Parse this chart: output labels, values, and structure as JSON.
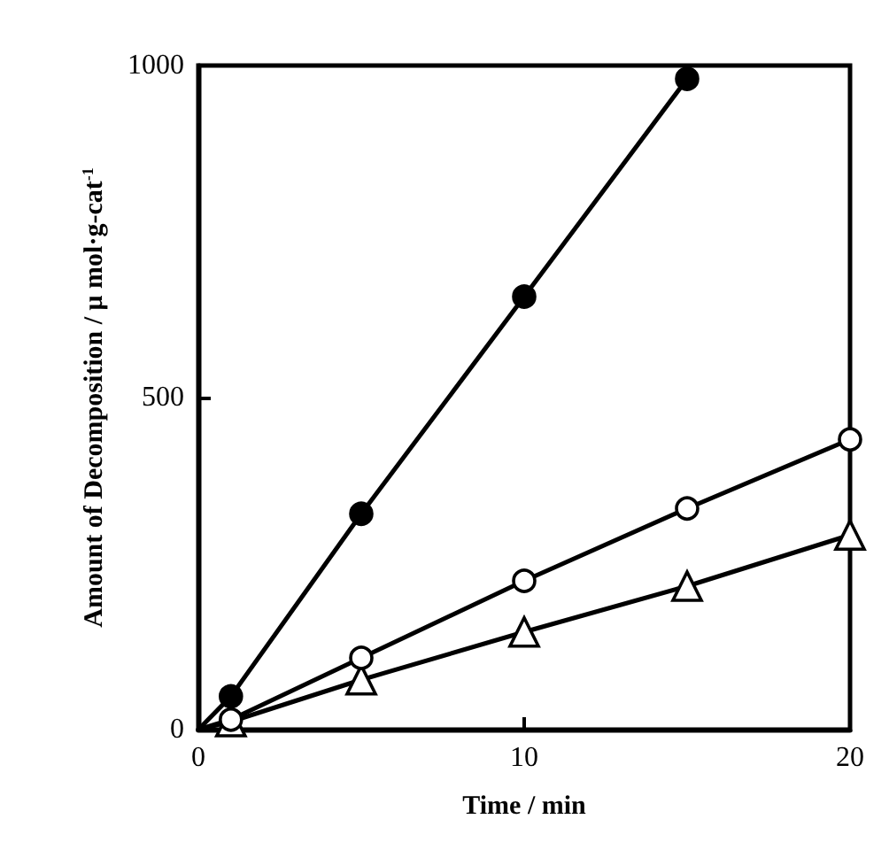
{
  "chart_data": {
    "type": "line",
    "xlabel": "Time / min",
    "ylabel": "Amount of Decomposition / μ mol·g-cat$^{-1}$",
    "xlim": [
      0,
      20
    ],
    "xticks": [
      0,
      10,
      20
    ],
    "ylim": [
      0,
      1000
    ],
    "yticks": [
      0,
      500,
      1000
    ],
    "grid": false,
    "line_style": "solid",
    "series": [
      {
        "color": "#000000",
        "marker": "circle",
        "x": [
          0,
          1,
          5,
          10,
          15
        ],
        "values": [
          0,
          50,
          325,
          652,
          980
        ],
        "colors": [
          "#000000",
          "#000000",
          "#000000",
          "#000000",
          "#000000"
        ]
      },
      {
        "color": "#000000",
        "marker": "circle",
        "x": [
          0,
          1,
          5,
          10,
          15,
          20
        ],
        "values": [
          0,
          15,
          108,
          224,
          333,
          437
        ],
        "colors": [
          "#ffffff",
          "#ffffff",
          "#ffffff",
          "#ffffff",
          "#ffffff",
          "#ffffff"
        ]
      },
      {
        "color": "#000000",
        "marker": "triangle",
        "x": [
          0,
          1,
          5,
          10,
          15,
          20
        ],
        "values": [
          0,
          12,
          75,
          147,
          216,
          293
        ],
        "colors": [
          "#ffffff",
          "#ffffff",
          "#ffffff",
          "#ffffff",
          "#ffffff",
          "#ffffff"
        ]
      }
    ]
  }
}
